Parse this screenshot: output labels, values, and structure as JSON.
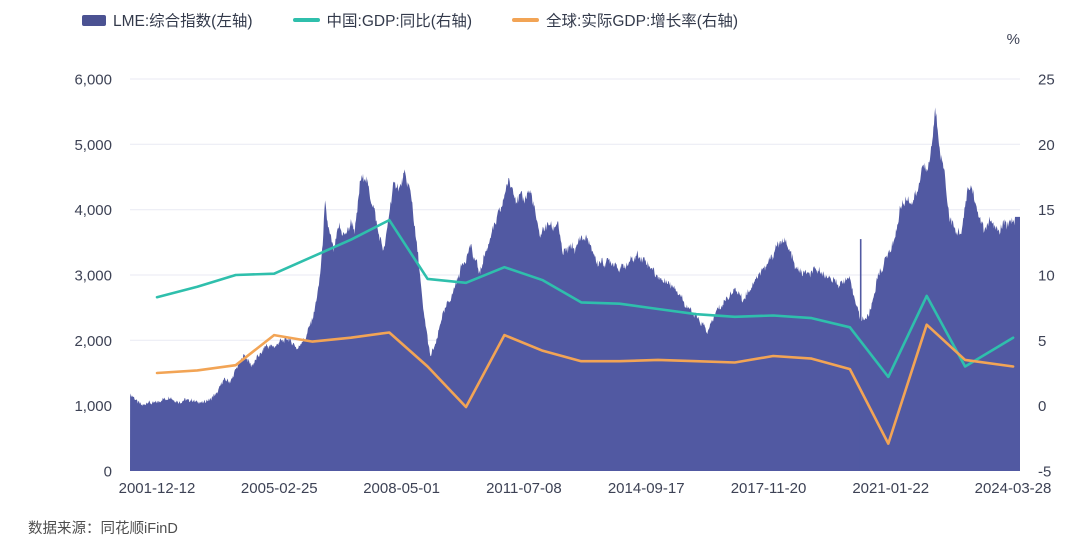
{
  "legend": [
    {
      "label": "LME:综合指数(左轴)",
      "color": "#4b5292",
      "type": "area"
    },
    {
      "label": "中国:GDP:同比(右轴)",
      "color": "#2fbfac",
      "type": "line"
    },
    {
      "label": "全球:实际GDP:增长率(右轴)",
      "color": "#f2a455",
      "type": "line"
    }
  ],
  "source_note": "数据来源：同花顺iFinD",
  "chart_data": {
    "type": "area",
    "title": "",
    "xlabel": "",
    "ylabel_right_unit": "%",
    "grid": true,
    "legend_position": "top",
    "left_axis": {
      "min": 0,
      "max": 6000,
      "tick_values": [
        0,
        1000,
        2000,
        3000,
        4000,
        5000,
        6000
      ],
      "tick_labels": [
        "0",
        "1,000",
        "2,000",
        "3,000",
        "4,000",
        "5,000",
        "6,000"
      ]
    },
    "right_axis": {
      "min": -5,
      "max": 25,
      "unit": "%",
      "tick_values": [
        -5,
        0,
        5,
        10,
        15,
        20,
        25
      ],
      "tick_labels": [
        "-5",
        "0",
        "5",
        "10",
        "15",
        "20",
        "25"
      ]
    },
    "x_axis": {
      "tick_labels": [
        "2001-12-12",
        "2005-02-25",
        "2008-05-01",
        "2011-07-08",
        "2014-09-17",
        "2017-11-20",
        "2021-01-22",
        "2024-03-28"
      ]
    },
    "series": [
      {
        "name": "LME:综合指数(左轴)",
        "type": "area",
        "axis": "left",
        "color": "#5159a2",
        "points": [
          [
            2001.25,
            1170
          ],
          [
            2001.4,
            1080
          ],
          [
            2001.55,
            1000
          ],
          [
            2001.7,
            1060
          ],
          [
            2001.9,
            1040
          ],
          [
            2002.1,
            1085
          ],
          [
            2002.3,
            1125
          ],
          [
            2002.5,
            1060
          ],
          [
            2002.7,
            1090
          ],
          [
            2002.9,
            1065
          ],
          [
            2003.1,
            1045
          ],
          [
            2003.3,
            1095
          ],
          [
            2003.5,
            1180
          ],
          [
            2003.7,
            1400
          ],
          [
            2003.85,
            1355
          ],
          [
            2004.1,
            1680
          ],
          [
            2004.25,
            1785
          ],
          [
            2004.4,
            1590
          ],
          [
            2004.6,
            1755
          ],
          [
            2004.8,
            1940
          ],
          [
            2005.0,
            1905
          ],
          [
            2005.2,
            1980
          ],
          [
            2005.4,
            2015
          ],
          [
            2005.6,
            1890
          ],
          [
            2005.85,
            2070
          ],
          [
            2006.05,
            2420
          ],
          [
            2006.15,
            2760
          ],
          [
            2006.25,
            3350
          ],
          [
            2006.33,
            4120
          ],
          [
            2006.45,
            3620
          ],
          [
            2006.55,
            3400
          ],
          [
            2006.7,
            3720
          ],
          [
            2006.85,
            3560
          ],
          [
            2007.0,
            3820
          ],
          [
            2007.1,
            3700
          ],
          [
            2007.25,
            4450
          ],
          [
            2007.35,
            4560
          ],
          [
            2007.45,
            4300
          ],
          [
            2007.55,
            4100
          ],
          [
            2007.7,
            3700
          ],
          [
            2007.85,
            3370
          ],
          [
            2008.0,
            3950
          ],
          [
            2008.1,
            4400
          ],
          [
            2008.25,
            4300
          ],
          [
            2008.4,
            4480
          ],
          [
            2008.5,
            4400
          ],
          [
            2008.6,
            4100
          ],
          [
            2008.75,
            3300
          ],
          [
            2008.9,
            2400
          ],
          [
            2009.07,
            1740
          ],
          [
            2009.2,
            1910
          ],
          [
            2009.4,
            2430
          ],
          [
            2009.55,
            2610
          ],
          [
            2009.7,
            2790
          ],
          [
            2009.85,
            3060
          ],
          [
            2010.0,
            3250
          ],
          [
            2010.12,
            3450
          ],
          [
            2010.35,
            3060
          ],
          [
            2010.55,
            3400
          ],
          [
            2010.75,
            3760
          ],
          [
            2010.9,
            4010
          ],
          [
            2011.0,
            4260
          ],
          [
            2011.12,
            4490
          ],
          [
            2011.3,
            4150
          ],
          [
            2011.5,
            4150
          ],
          [
            2011.7,
            4300
          ],
          [
            2011.85,
            3800
          ],
          [
            2011.95,
            3620
          ],
          [
            2012.1,
            3760
          ],
          [
            2012.25,
            3700
          ],
          [
            2012.4,
            3790
          ],
          [
            2012.52,
            3340
          ],
          [
            2012.7,
            3460
          ],
          [
            2012.85,
            3380
          ],
          [
            2013.0,
            3560
          ],
          [
            2013.2,
            3520
          ],
          [
            2013.4,
            3230
          ],
          [
            2013.6,
            3180
          ],
          [
            2013.78,
            3190
          ],
          [
            2014.0,
            3110
          ],
          [
            2014.2,
            3190
          ],
          [
            2014.45,
            3280
          ],
          [
            2014.6,
            3230
          ],
          [
            2014.8,
            3150
          ],
          [
            2015.05,
            2950
          ],
          [
            2015.3,
            2850
          ],
          [
            2015.5,
            2770
          ],
          [
            2015.8,
            2500
          ],
          [
            2016.05,
            2300
          ],
          [
            2016.3,
            2130
          ],
          [
            2016.5,
            2450
          ],
          [
            2016.7,
            2560
          ],
          [
            2016.9,
            2700
          ],
          [
            2017.05,
            2780
          ],
          [
            2017.2,
            2640
          ],
          [
            2017.4,
            2800
          ],
          [
            2017.6,
            2970
          ],
          [
            2017.85,
            3160
          ],
          [
            2018.1,
            3480
          ],
          [
            2018.3,
            3520
          ],
          [
            2018.45,
            3300
          ],
          [
            2018.6,
            3090
          ],
          [
            2018.8,
            3060
          ],
          [
            2018.95,
            3020
          ],
          [
            2019.15,
            3060
          ],
          [
            2019.35,
            2990
          ],
          [
            2019.55,
            2950
          ],
          [
            2019.75,
            2860
          ],
          [
            2019.95,
            2940
          ],
          [
            2020.1,
            2700
          ],
          [
            2020.25,
            2380
          ],
          [
            2020.4,
            2330
          ],
          [
            2020.55,
            2480
          ],
          [
            2020.7,
            2900
          ],
          [
            2020.85,
            3110
          ],
          [
            2021.0,
            3350
          ],
          [
            2021.15,
            3550
          ],
          [
            2021.3,
            3990
          ],
          [
            2021.45,
            4150
          ],
          [
            2021.6,
            4080
          ],
          [
            2021.75,
            4250
          ],
          [
            2021.9,
            4760
          ],
          [
            2022.0,
            4610
          ],
          [
            2022.1,
            4800
          ],
          [
            2022.22,
            5510
          ],
          [
            2022.32,
            5000
          ],
          [
            2022.45,
            4590
          ],
          [
            2022.6,
            3890
          ],
          [
            2022.75,
            3700
          ],
          [
            2022.9,
            3630
          ],
          [
            2023.05,
            4200
          ],
          [
            2023.15,
            4370
          ],
          [
            2023.3,
            4020
          ],
          [
            2023.5,
            3710
          ],
          [
            2023.65,
            3830
          ],
          [
            2023.85,
            3630
          ],
          [
            2024.0,
            3760
          ],
          [
            2024.15,
            3830
          ],
          [
            2024.3,
            3890
          ]
        ]
      },
      {
        "name": "中国:GDP:同比(右轴)",
        "type": "line",
        "axis": "right",
        "color": "#2fbfac",
        "points": [
          [
            2001.95,
            8.3
          ],
          [
            2003.0,
            9.1
          ],
          [
            2004.0,
            10.0
          ],
          [
            2005.0,
            10.1
          ],
          [
            2006.0,
            11.4
          ],
          [
            2007.0,
            12.7
          ],
          [
            2008.0,
            14.2
          ],
          [
            2009.0,
            9.7
          ],
          [
            2010.0,
            9.4
          ],
          [
            2011.0,
            10.6
          ],
          [
            2012.0,
            9.6
          ],
          [
            2013.0,
            7.9
          ],
          [
            2014.0,
            7.8
          ],
          [
            2015.0,
            7.4
          ],
          [
            2016.0,
            7.0
          ],
          [
            2017.0,
            6.8
          ],
          [
            2018.0,
            6.9
          ],
          [
            2019.0,
            6.7
          ],
          [
            2020.0,
            6.0
          ],
          [
            2021.0,
            2.2
          ],
          [
            2022.0,
            8.4
          ],
          [
            2023.0,
            3.0
          ],
          [
            2024.25,
            5.2
          ]
        ]
      },
      {
        "name": "全球:实际GDP:增长率(右轴)",
        "type": "line",
        "axis": "right",
        "color": "#f2a455",
        "points": [
          [
            2001.95,
            2.5
          ],
          [
            2003.0,
            2.7
          ],
          [
            2004.0,
            3.1
          ],
          [
            2005.0,
            5.4
          ],
          [
            2006.0,
            4.9
          ],
          [
            2007.0,
            5.2
          ],
          [
            2008.0,
            5.6
          ],
          [
            2009.0,
            3.0
          ],
          [
            2010.0,
            -0.1
          ],
          [
            2011.0,
            5.4
          ],
          [
            2012.0,
            4.2
          ],
          [
            2013.0,
            3.4
          ],
          [
            2014.0,
            3.4
          ],
          [
            2015.0,
            3.5
          ],
          [
            2016.0,
            3.4
          ],
          [
            2017.0,
            3.3
          ],
          [
            2018.0,
            3.8
          ],
          [
            2019.0,
            3.6
          ],
          [
            2020.0,
            2.8
          ],
          [
            2021.0,
            -2.9
          ],
          [
            2022.0,
            6.2
          ],
          [
            2023.0,
            3.5
          ],
          [
            2024.25,
            3.0
          ]
        ]
      }
    ],
    "anomaly_spike": {
      "t": 2020.28,
      "value": 3550
    }
  }
}
